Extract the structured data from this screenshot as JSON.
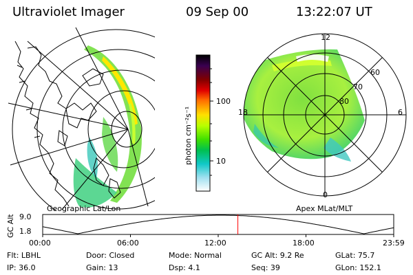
{
  "header": {
    "title": "Ultraviolet Imager",
    "date": "09 Sep 00",
    "time": "13:22:07 UT"
  },
  "geo_panel": {
    "label": "Geographic Lat/Lon"
  },
  "colorbar": {
    "unit_label": "photon cm⁻²s⁻¹",
    "ticks": [
      "100",
      "10"
    ],
    "colors": [
      "#000000",
      "#3a0050",
      "#800000",
      "#e00000",
      "#ff6a00",
      "#ffa000",
      "#ffe000",
      "#b8ff00",
      "#40e000",
      "#00c050",
      "#10c8c8",
      "#a0e0f0",
      "#ffffff"
    ]
  },
  "polar_panel": {
    "label": "Apex MLat/MLT",
    "mlt_labels": [
      "12",
      "18",
      "6",
      "0"
    ],
    "lat_labels": [
      "60",
      "70",
      "80"
    ]
  },
  "timeline": {
    "axis_label": "GC Alt",
    "y_ticks": [
      "9.0",
      "1.8"
    ],
    "x_ticks": [
      "00:00",
      "06:00",
      "12:00",
      "18:00",
      "23:59"
    ],
    "current_time_fraction": 0.556,
    "marker_color": "#ff0000"
  },
  "footer": {
    "filter": "Flt: LBHL",
    "door": "Door: Closed",
    "mode": "Mode: Normal",
    "gc_alt": "GC Alt: 9.2 Re",
    "glat": "GLat:  75.7",
    "ip": "IP: 36.0",
    "gain": "Gain: 13",
    "dsp": "Dsp:    4.1",
    "seq": "Seq: 39",
    "glon": "GLon: 152.1"
  }
}
